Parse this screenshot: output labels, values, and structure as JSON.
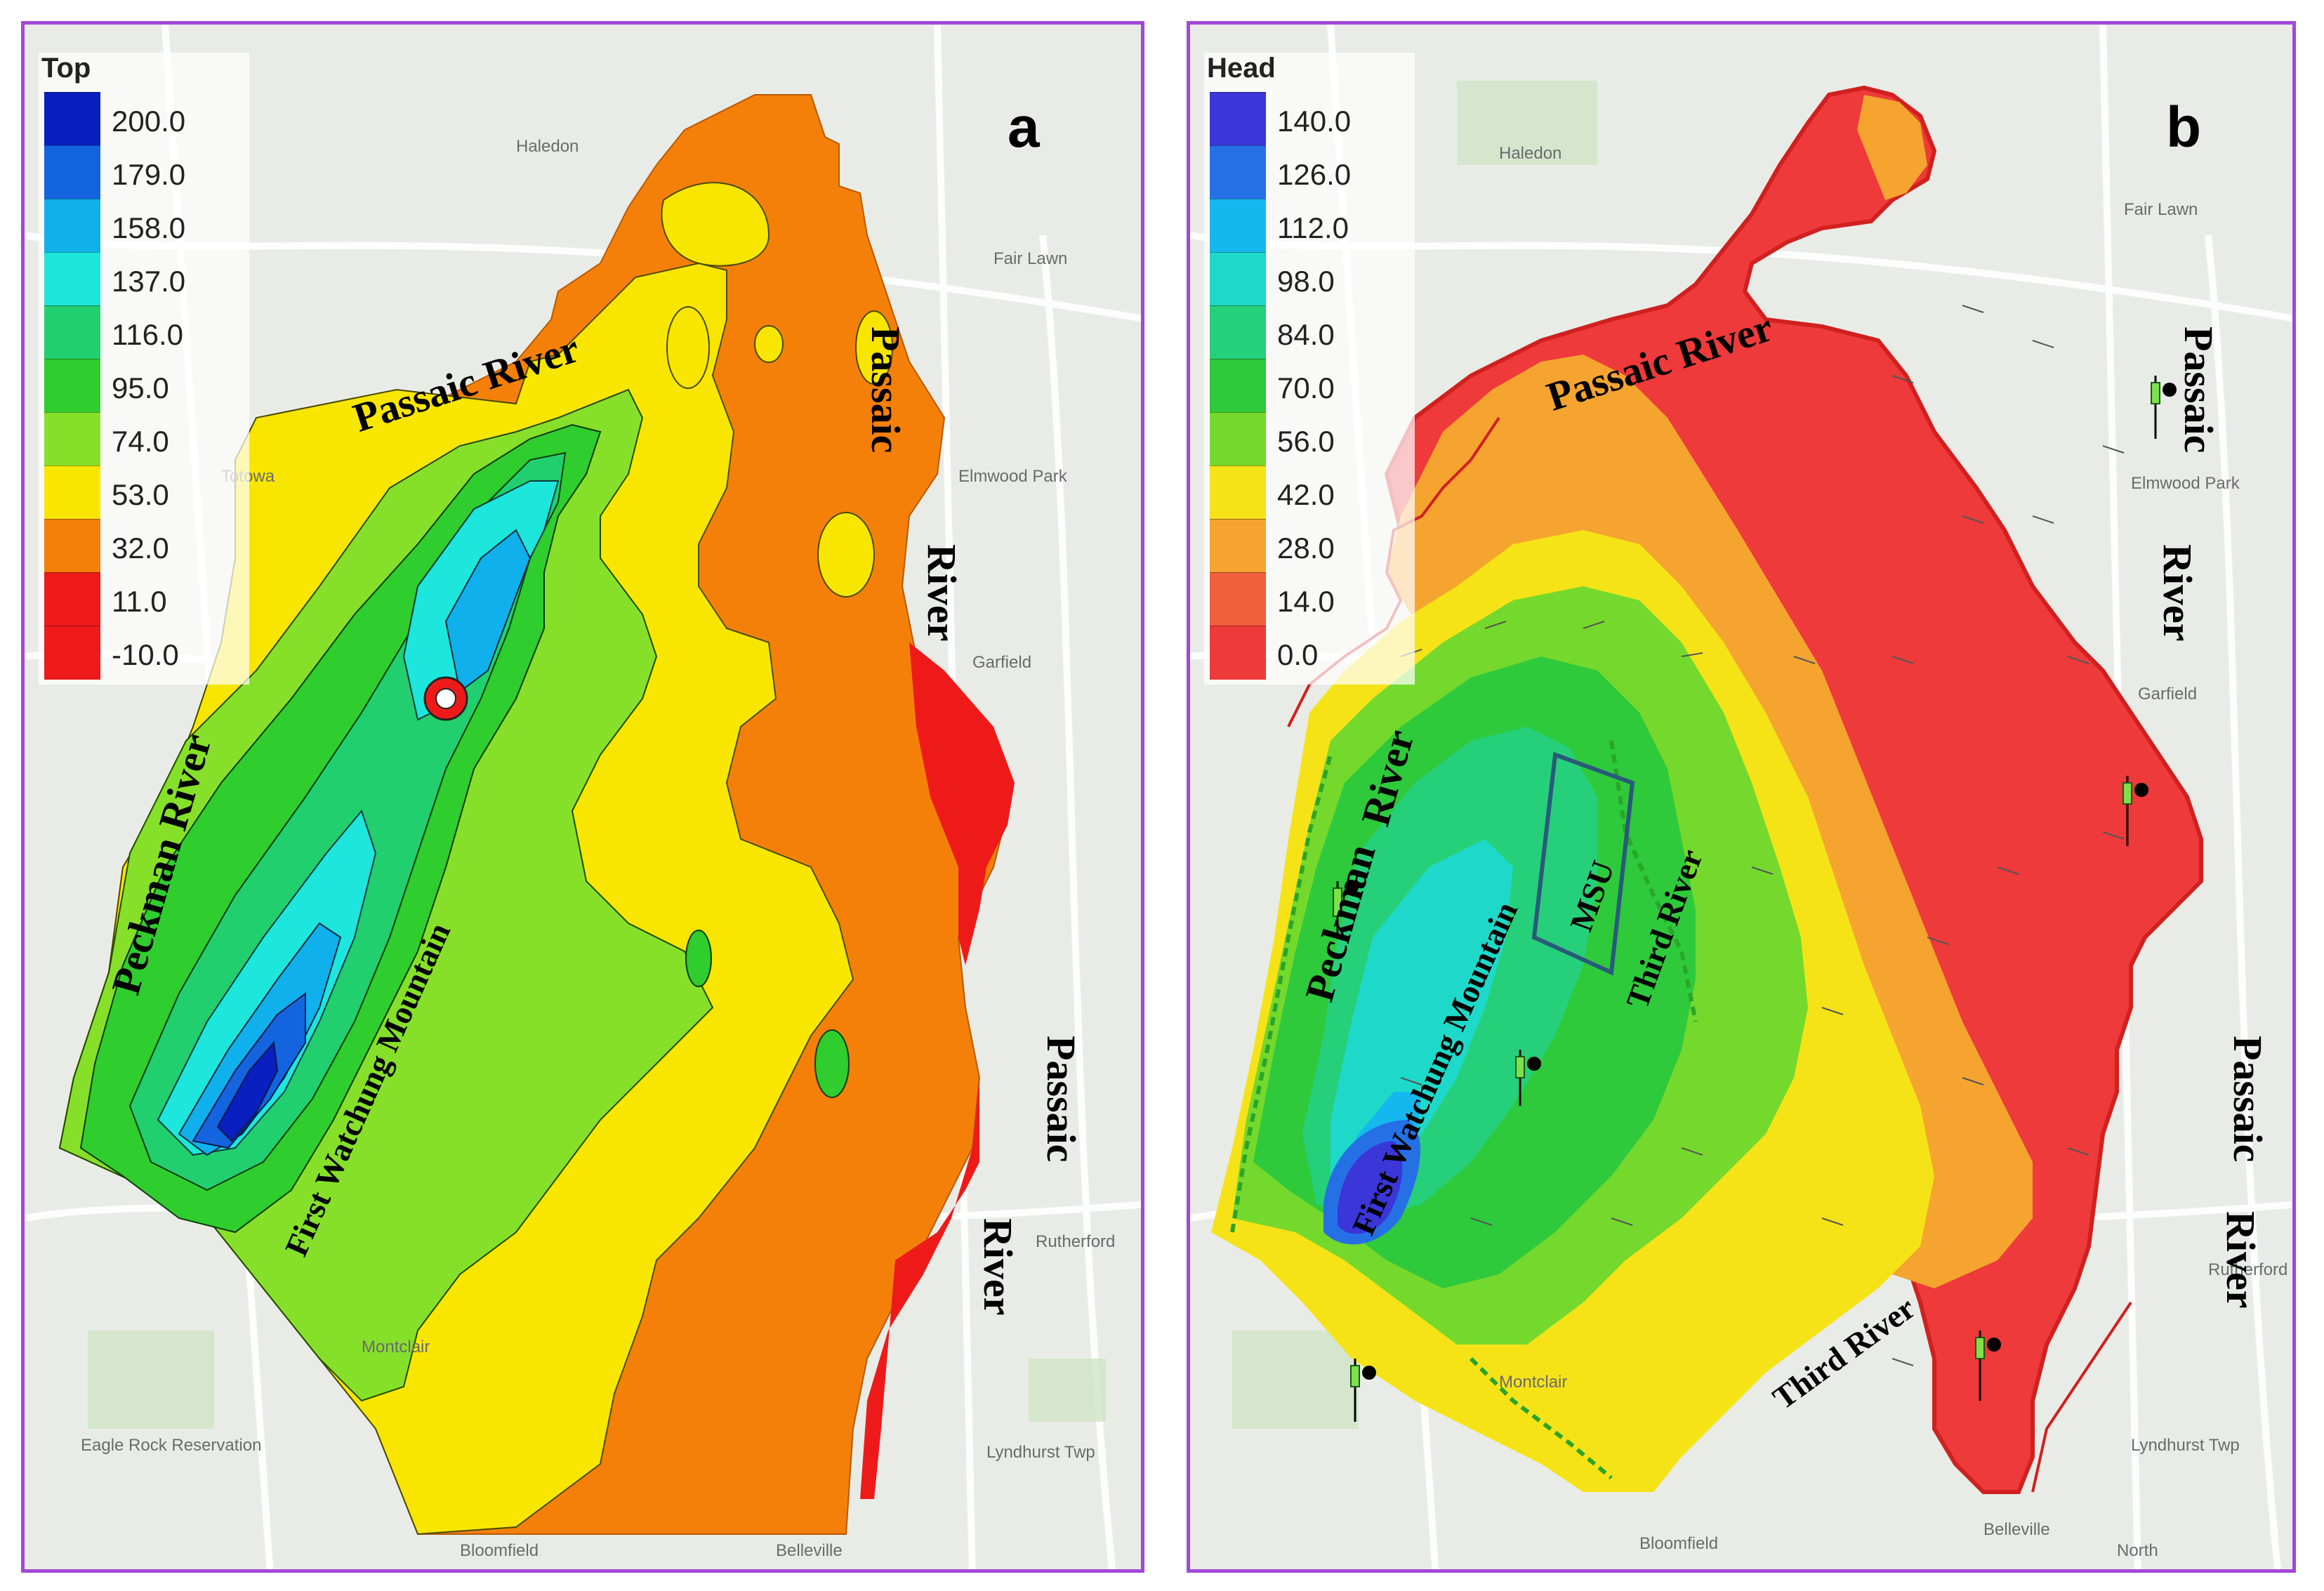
{
  "panel_a": {
    "letter": "a",
    "legend_title": "Top",
    "legend": [
      {
        "label": "200.0",
        "color": "#0a1fbf"
      },
      {
        "label": "179.0",
        "color": "#1464e0"
      },
      {
        "label": "158.0",
        "color": "#10b0ec"
      },
      {
        "label": "137.0",
        "color": "#1de6dc"
      },
      {
        "label": "116.0",
        "color": "#21cf6e"
      },
      {
        "label": "95.0",
        "color": "#2fcd2d"
      },
      {
        "label": "74.0",
        "color": "#86e02a"
      },
      {
        "label": "53.0",
        "color": "#f8e600"
      },
      {
        "label": "32.0",
        "color": "#f4800a"
      },
      {
        "label": "11.0",
        "color": "#ee1a1a"
      },
      {
        "label": "-10.0",
        "color": "#ee1a1a"
      }
    ],
    "labels": {
      "passaic_north": "Passaic  River",
      "passaic_east_1": "Passaic",
      "passaic_east_2": "River",
      "passaic_se_1": "Passaic",
      "passaic_se_2": "River",
      "peckman": "Peckman    River",
      "mountain": "First Watchung Mountain"
    },
    "streets": [
      "Haledon",
      "Fair Lawn",
      "Totowa",
      "Elmwood Park",
      "Garfield",
      "Montclair",
      "Lyndhurst Twp",
      "Eagle Rock Reservation",
      "Bloomfield",
      "Belleville",
      "Rutherford"
    ]
  },
  "panel_b": {
    "letter": "b",
    "legend_title": "Head",
    "legend": [
      {
        "label": "140.0",
        "color": "#3a36d8"
      },
      {
        "label": "126.0",
        "color": "#2670e6"
      },
      {
        "label": "112.0",
        "color": "#15b8ee"
      },
      {
        "label": "98.0",
        "color": "#1ed9c9"
      },
      {
        "label": "84.0",
        "color": "#26d07a"
      },
      {
        "label": "70.0",
        "color": "#2fc93c"
      },
      {
        "label": "56.0",
        "color": "#74d92c"
      },
      {
        "label": "42.0",
        "color": "#f6e317"
      },
      {
        "label": "28.0",
        "color": "#f4a42f"
      },
      {
        "label": "14.0",
        "color": "#f0603a"
      },
      {
        "label": "0.0",
        "color": "#ee3a3a"
      }
    ],
    "labels": {
      "passaic_north": "Passaic  River",
      "passaic_east_1": "Passaic",
      "passaic_east_2": "River",
      "passaic_se_1": "Passaic",
      "passaic_se_2": "River",
      "peckman_1": "Peckman",
      "peckman_2": "River",
      "mountain": "First Watchung Mountain",
      "third_river_1": "Third River",
      "third_river_2": "Third River",
      "msu": "MSU"
    },
    "streets": [
      "Haledon",
      "Fair Lawn",
      "Elmwood Park",
      "Garfield",
      "Montclair",
      "Lyndhurst Twp",
      "Bloomfield",
      "Belleville",
      "Rutherford",
      "North"
    ]
  }
}
